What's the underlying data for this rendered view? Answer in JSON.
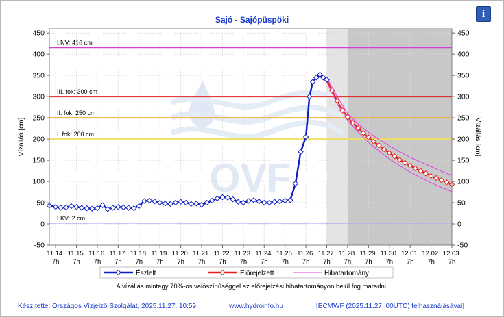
{
  "title": "Sajó - Sajópüspöki",
  "info_label": "i",
  "chart_data": {
    "type": "line",
    "title": "Sajó - Sajópüspöki",
    "ylabel": "Vízállás [cm]",
    "ylabel_right": "Vízállás [cm]",
    "ylim": [
      -50,
      460
    ],
    "y_ticks": [
      -50,
      0,
      50,
      100,
      150,
      200,
      250,
      300,
      350,
      400,
      450
    ],
    "x_ticks": [
      {
        "date": "11.14.",
        "hour": "7h"
      },
      {
        "date": "11.15.",
        "hour": "7h"
      },
      {
        "date": "11.16.",
        "hour": "7h"
      },
      {
        "date": "11.17.",
        "hour": "7h"
      },
      {
        "date": "11.18.",
        "hour": "7h"
      },
      {
        "date": "11.19.",
        "hour": "7h"
      },
      {
        "date": "11.20.",
        "hour": "7h"
      },
      {
        "date": "11.21.",
        "hour": "7h"
      },
      {
        "date": "11.22.",
        "hour": "7h"
      },
      {
        "date": "11.23.",
        "hour": "7h"
      },
      {
        "date": "11.24.",
        "hour": "7h"
      },
      {
        "date": "11.25.",
        "hour": "7h"
      },
      {
        "date": "11.26.",
        "hour": "7h"
      },
      {
        "date": "11.27.",
        "hour": "7h"
      },
      {
        "date": "11.28.",
        "hour": "7h"
      },
      {
        "date": "11.29.",
        "hour": "7h"
      },
      {
        "date": "11.30.",
        "hour": "7h"
      },
      {
        "date": "12.01.",
        "hour": "7h"
      },
      {
        "date": "12.02.",
        "hour": "7h"
      },
      {
        "date": "12.03.",
        "hour": "7h"
      }
    ],
    "x_unit": "days after 11.14. 7h",
    "xlim": [
      -0.3,
      19
    ],
    "shaded_regions": [
      {
        "from": 13.0,
        "to": 14.0,
        "color": "#e4e4e4"
      },
      {
        "from": 14.0,
        "to": 19.0,
        "color": "#c8c8c8"
      }
    ],
    "reference_lines": [
      {
        "label": "LNV: 416 cm",
        "value": 416,
        "color": "#d040d0"
      },
      {
        "label": "III. fok: 300 cm",
        "value": 300,
        "color": "#e02020"
      },
      {
        "label": "II. fok: 250 cm",
        "value": 250,
        "color": "#f0b040"
      },
      {
        "label": "I. fok: 200 cm",
        "value": 200,
        "color": "#f0e060"
      },
      {
        "label": "LKV: 2 cm",
        "value": 2,
        "color": "#a0a0ff"
      }
    ],
    "series": [
      {
        "name": "Észlelt",
        "color": "#1020c0",
        "x": [
          -0.3,
          0.0,
          0.25,
          0.5,
          0.75,
          1.0,
          1.25,
          1.5,
          1.75,
          2.0,
          2.25,
          2.5,
          2.75,
          3.0,
          3.25,
          3.5,
          3.75,
          4.0,
          4.25,
          4.5,
          4.75,
          5.0,
          5.25,
          5.5,
          5.75,
          6.0,
          6.25,
          6.5,
          6.75,
          7.0,
          7.25,
          7.5,
          7.75,
          8.0,
          8.25,
          8.5,
          8.75,
          9.0,
          9.25,
          9.5,
          9.75,
          10.0,
          10.25,
          10.5,
          10.75,
          11.0,
          11.25,
          11.5,
          11.75,
          12.0,
          12.17,
          12.33,
          12.5,
          12.67,
          12.83,
          13.0
        ],
        "values": [
          43,
          40,
          38,
          39,
          42,
          40,
          38,
          37,
          36,
          37,
          44,
          35,
          38,
          40,
          39,
          38,
          37,
          42,
          54,
          55,
          53,
          50,
          48,
          47,
          50,
          52,
          50,
          47,
          48,
          45,
          50,
          55,
          60,
          63,
          62,
          58,
          52,
          50,
          54,
          56,
          53,
          50,
          50,
          52,
          53,
          55,
          56,
          95,
          170,
          205,
          300,
          335,
          345,
          352,
          345,
          340
        ]
      },
      {
        "name": "Előrejelzett",
        "color": "#e02020",
        "x": [
          13.0,
          13.25,
          13.5,
          13.75,
          14.0,
          14.25,
          14.5,
          14.75,
          15.0,
          15.25,
          15.5,
          15.75,
          16.0,
          16.25,
          16.5,
          16.75,
          17.0,
          17.25,
          17.5,
          17.75,
          18.0,
          18.25,
          18.5,
          18.75,
          19.0
        ],
        "values": [
          340,
          315,
          290,
          268,
          252,
          238,
          226,
          214,
          204,
          194,
          185,
          176,
          167,
          159,
          151,
          144,
          137,
          131,
          125,
          119,
          113,
          108,
          103,
          98,
          93
        ]
      },
      {
        "name": "Hibatartomány",
        "color": "#e040e0",
        "x": [
          13.0,
          13.5,
          14.0,
          14.5,
          15.0,
          15.5,
          16.0,
          16.5,
          17.0,
          17.5,
          18.0,
          18.5,
          19.0
        ],
        "upper": [
          345,
          300,
          260,
          236,
          216,
          199,
          184,
          170,
          157,
          146,
          135,
          124,
          114
        ],
        "lower": [
          335,
          282,
          244,
          217,
          192,
          172,
          153,
          137,
          122,
          109,
          97,
          86,
          76
        ]
      }
    ],
    "legend": {
      "position": "bottom",
      "items": [
        "Észlelt",
        "Előrejelzett",
        "Hibatartomány"
      ]
    },
    "grid": true
  },
  "footnote": "A vízállás mintegy 70%-os valószínűséggel az előrejelzési hibatartományon belül fog maradni.",
  "footer": {
    "left": "Készítette: Országos Vízjelző Szolgálat, 2025.11.27. 10:59",
    "center": "www.hydroinfo.hu",
    "right": "[ECMWF (2025.11.27. 00UTC) felhasználásával]"
  },
  "watermark": "OVF",
  "colors": {
    "title": "#1a3ccf",
    "plot_bg": "#ffffff",
    "axis": "#808080"
  }
}
